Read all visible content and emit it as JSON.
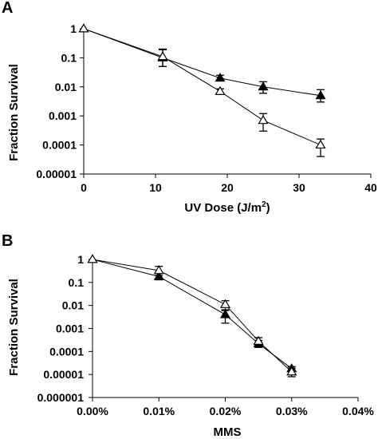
{
  "chart_data": [
    {
      "panel_label": "A",
      "type": "line",
      "xlabel_main": "UV Dose (J/m",
      "xlabel_sup": "2",
      "xlabel_close": ")",
      "ylabel": "Fraction Survival",
      "ylog": true,
      "ylim": [
        1e-05,
        1
      ],
      "xlim": [
        0,
        40
      ],
      "x_ticks": [
        0,
        10,
        20,
        30,
        40
      ],
      "x_tick_labels": [
        "0",
        "10",
        "20",
        "30",
        "40"
      ],
      "y_ticks": [
        1,
        0.1,
        0.01,
        0.001,
        0.0001,
        1e-05
      ],
      "y_tick_labels": [
        "1",
        "0.1",
        "0.01",
        "0.001",
        "0.0001",
        "0.00001"
      ],
      "series": [
        {
          "marker": "filled-triangle",
          "x": [
            0,
            11,
            19,
            25,
            33
          ],
          "y": [
            1,
            0.1,
            0.02,
            0.01,
            0.005
          ],
          "err_low": [
            1,
            0.05,
            0.016,
            0.006,
            0.003
          ],
          "err_high": [
            1,
            0.19,
            0.025,
            0.015,
            0.008
          ]
        },
        {
          "marker": "open-triangle",
          "x": [
            0,
            11,
            19,
            25,
            33
          ],
          "y": [
            1,
            0.11,
            0.007,
            0.0007,
            0.0001
          ],
          "err_low": [
            1,
            0.05,
            0.0055,
            0.0003,
            4e-05
          ],
          "err_high": [
            1,
            0.2,
            0.0085,
            0.0012,
            0.00016
          ]
        }
      ]
    },
    {
      "panel_label": "B",
      "type": "line",
      "xlabel": "MMS",
      "ylabel": "Fraction Survival",
      "ylog": true,
      "ylim": [
        1e-06,
        1
      ],
      "xlim": [
        0,
        0.04
      ],
      "x_ticks": [
        0,
        0.01,
        0.02,
        0.03,
        0.04
      ],
      "x_tick_labels": [
        "0.00%",
        "0.01%",
        "0.02%",
        "0.03%",
        "0.04%"
      ],
      "y_ticks": [
        1,
        0.1,
        0.01,
        0.001,
        0.0001,
        1e-05,
        1e-06
      ],
      "y_tick_labels": [
        "1",
        "0.1",
        "0.01",
        "0.001",
        "0.0001",
        "0.00001",
        "0.000001"
      ],
      "series": [
        {
          "marker": "filled-triangle",
          "x": [
            0,
            0.01,
            0.02,
            0.025,
            0.03
          ],
          "y": [
            1,
            0.18,
            0.004,
            0.00022,
            1.8e-05
          ],
          "err_low": [
            1,
            0.13,
            0.0017,
            0.00015,
            1.4e-05
          ],
          "err_high": [
            1,
            0.24,
            0.0065,
            0.0003,
            2.2e-05
          ]
        },
        {
          "marker": "open-triangle",
          "x": [
            0,
            0.01,
            0.02,
            0.025,
            0.03
          ],
          "y": [
            1,
            0.33,
            0.011,
            0.00028,
            1.3e-05
          ],
          "err_low": [
            1,
            0.2,
            0.006,
            0.00018,
            8e-06
          ],
          "err_high": [
            1,
            0.5,
            0.016,
            0.0004,
            1.9e-05
          ]
        }
      ]
    }
  ]
}
